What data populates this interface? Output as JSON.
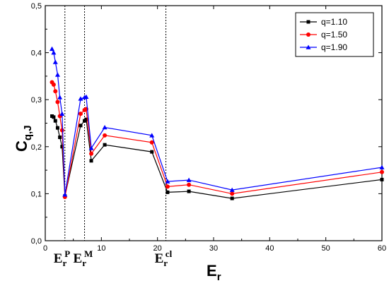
{
  "chart_data": {
    "type": "line",
    "xlabel": "E",
    "xlabel_sub": "r",
    "ylabel": "C",
    "ylabel_sub": "q,J",
    "xlim": [
      0,
      60
    ],
    "ylim": [
      0,
      0.5
    ],
    "x_ticks": [
      0,
      10,
      20,
      30,
      40,
      50,
      60
    ],
    "x_tick_labels": [
      "0",
      "10",
      "20",
      "30",
      "40",
      "50",
      "60"
    ],
    "y_ticks": [
      0,
      0.1,
      0.2,
      0.3,
      0.4,
      0.5
    ],
    "y_tick_labels": [
      "0,0",
      "0,1",
      "0,2",
      "0,3",
      "0,4",
      "0,5"
    ],
    "grid": false,
    "legend_position": "top-right",
    "series": [
      {
        "name": "q=1.10",
        "color": "#000000",
        "marker": "square",
        "x": [
          1.2,
          1.5,
          1.8,
          2.2,
          2.6,
          3.0,
          3.5,
          6.3,
          7.0,
          7.3,
          8.2,
          10.6,
          19.0,
          21.8,
          25.6,
          33.3,
          60.0
        ],
        "y": [
          0.265,
          0.263,
          0.255,
          0.24,
          0.22,
          0.2,
          0.095,
          0.245,
          0.255,
          0.258,
          0.17,
          0.204,
          0.189,
          0.103,
          0.105,
          0.09,
          0.13
        ]
      },
      {
        "name": "q=1.50",
        "color": "#ff0000",
        "marker": "circle",
        "x": [
          1.2,
          1.5,
          1.8,
          2.2,
          2.6,
          3.0,
          3.5,
          6.3,
          7.0,
          7.3,
          8.2,
          10.6,
          19.0,
          21.8,
          25.6,
          33.3,
          60.0
        ],
        "y": [
          0.337,
          0.332,
          0.318,
          0.295,
          0.265,
          0.235,
          0.093,
          0.27,
          0.278,
          0.28,
          0.185,
          0.224,
          0.209,
          0.115,
          0.119,
          0.1,
          0.146
        ]
      },
      {
        "name": "q=1.90",
        "color": "#0000ff",
        "marker": "triangle",
        "x": [
          1.2,
          1.5,
          1.8,
          2.2,
          2.6,
          3.0,
          3.5,
          6.3,
          7.0,
          7.3,
          8.2,
          10.6,
          19.0,
          21.8,
          25.6,
          33.3,
          60.0
        ],
        "y": [
          0.408,
          0.4,
          0.38,
          0.353,
          0.305,
          0.27,
          0.098,
          0.302,
          0.305,
          0.306,
          0.197,
          0.241,
          0.224,
          0.126,
          0.129,
          0.108,
          0.156
        ]
      }
    ],
    "vertical_lines": [
      {
        "x": 3.5,
        "label": "E",
        "label_sub": "r",
        "label_sup": "P"
      },
      {
        "x": 7.0,
        "label": "E",
        "label_sub": "r",
        "label_sup": "M"
      },
      {
        "x": 21.5,
        "label": "E",
        "label_sub": "r",
        "label_sup": "cl"
      }
    ]
  }
}
